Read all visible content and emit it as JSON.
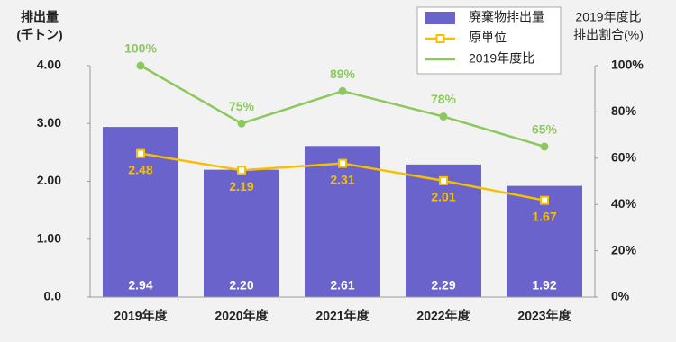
{
  "chart_data": {
    "type": "bar",
    "ylabel_lines": [
      "排出量",
      "(千トン)"
    ],
    "y2label_lines": [
      "2019年度比",
      "排出割合(%)"
    ],
    "categories": [
      "2019年度",
      "2020年度",
      "2021年度",
      "2022年度",
      "2023年度"
    ],
    "series": [
      {
        "name": "廃棄物排出量",
        "type": "bar",
        "color": "#6a63cb",
        "axis": "y",
        "values": [
          2.94,
          2.2,
          2.61,
          2.29,
          1.92
        ],
        "value_labels": [
          "2.94",
          "2.20",
          "2.61",
          "2.29",
          "1.92"
        ]
      },
      {
        "name": "原単位",
        "type": "line",
        "color": "#f5c000",
        "axis": "y",
        "values": [
          2.48,
          2.19,
          2.31,
          2.01,
          1.67
        ]
      },
      {
        "name": "2019年度比",
        "type": "line",
        "color": "#8dc85f",
        "axis": "y2",
        "values": [
          100,
          75,
          89,
          78,
          65
        ],
        "value_labels": [
          "100%",
          "75%",
          "89%",
          "78%",
          "65%"
        ]
      }
    ],
    "ylim": [
      0,
      4
    ],
    "yticks": [
      {
        "value": 0,
        "label": "0.0"
      },
      {
        "value": 1,
        "label": "1.00"
      },
      {
        "value": 2,
        "label": "2.00"
      },
      {
        "value": 3,
        "label": "3.00"
      },
      {
        "value": 4,
        "label": "4.00"
      }
    ],
    "y2lim": [
      0,
      100
    ],
    "y2ticks": [
      {
        "value": 0,
        "label": "0%"
      },
      {
        "value": 20,
        "label": "20%"
      },
      {
        "value": 40,
        "label": "40%"
      },
      {
        "value": 60,
        "label": "60%"
      },
      {
        "value": 80,
        "label": "80%"
      },
      {
        "value": 100,
        "label": "100%"
      }
    ],
    "legend": "top-right",
    "grid": false
  }
}
